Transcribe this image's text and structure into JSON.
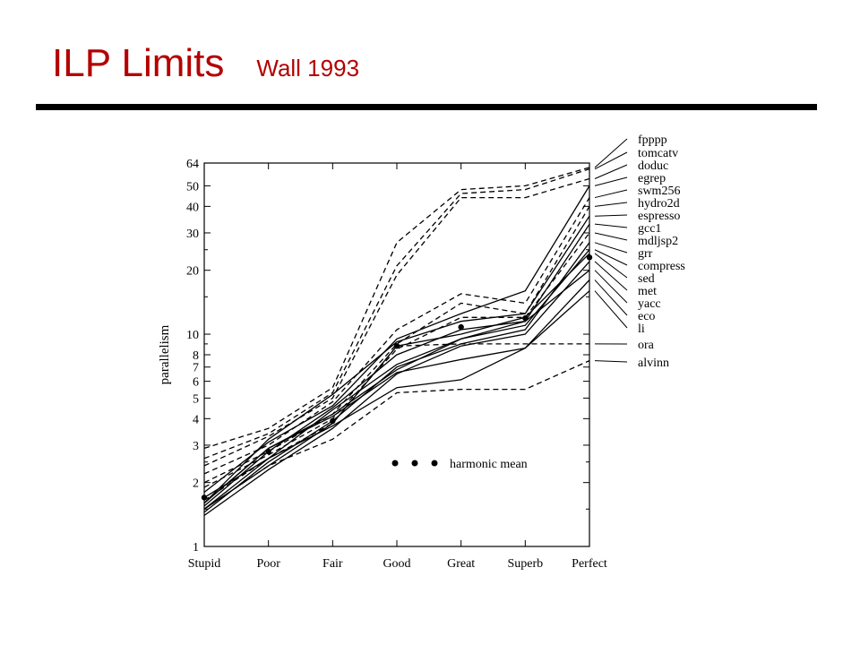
{
  "slide": {
    "title": "ILP Limits",
    "subtitle": "Wall 1993",
    "title_color": "#b40000",
    "rule_color": "#000000"
  },
  "chart_data": {
    "type": "line",
    "ylabel": "parallelism",
    "yscale": "log2",
    "ylim": [
      1,
      64
    ],
    "ytick_labels": [
      "1",
      "2",
      "3",
      "4",
      "5",
      "6",
      "7",
      "8",
      "10",
      "20",
      "30",
      "40",
      "50",
      "64"
    ],
    "categories": [
      "Stupid",
      "Poor",
      "Fair",
      "Good",
      "Great",
      "Superb",
      "Perfect"
    ],
    "grid": false,
    "legend": {
      "label": "harmonic mean",
      "placement": "center-right"
    },
    "series": [
      {
        "name": "fpppp",
        "style": "dashed",
        "values": [
          2.9,
          3.6,
          5.6,
          27,
          48,
          50,
          61
        ]
      },
      {
        "name": "tomcatv",
        "style": "dashed",
        "values": [
          2.6,
          3.4,
          5.3,
          21,
          46,
          48,
          60
        ]
      },
      {
        "name": "doduc",
        "style": "dashed",
        "values": [
          2.4,
          3.3,
          5.0,
          19,
          44,
          44,
          54
        ]
      },
      {
        "name": "egrep",
        "style": "solid",
        "values": [
          1.8,
          3.1,
          4.6,
          9.5,
          12.5,
          16,
          50
        ]
      },
      {
        "name": "swm256",
        "style": "dashed",
        "values": [
          2.2,
          3.0,
          4.8,
          10.5,
          15.5,
          14,
          44
        ]
      },
      {
        "name": "hydro2d",
        "style": "dashed",
        "values": [
          2.0,
          2.8,
          4.2,
          9.0,
          14,
          12.5,
          40
        ]
      },
      {
        "name": "espresso",
        "style": "solid",
        "values": [
          1.6,
          3.2,
          5.2,
          9.2,
          11.5,
          12.5,
          36
        ]
      },
      {
        "name": "gcc1",
        "style": "solid",
        "values": [
          1.5,
          2.6,
          4.4,
          7.2,
          9.5,
          11.5,
          33
        ]
      },
      {
        "name": "mdljsp2",
        "style": "dashed",
        "values": [
          1.9,
          2.7,
          4.0,
          8.5,
          12,
          12,
          30
        ]
      },
      {
        "name": "grr",
        "style": "solid",
        "values": [
          1.45,
          2.5,
          3.9,
          7.0,
          9.0,
          10.5,
          27
        ]
      },
      {
        "name": "compress",
        "style": "solid",
        "values": [
          1.6,
          2.9,
          4.2,
          6.8,
          9.5,
          11,
          25
        ]
      },
      {
        "name": "sed",
        "style": "solid",
        "values": [
          1.5,
          2.4,
          3.8,
          8.8,
          10,
          12,
          24
        ]
      },
      {
        "name": "met",
        "style": "solid",
        "values": [
          1.4,
          2.3,
          3.6,
          6.5,
          8.8,
          10,
          22
        ]
      },
      {
        "name": "yacc",
        "style": "solid",
        "values": [
          1.55,
          2.8,
          4.5,
          8.0,
          10.5,
          11.5,
          20
        ]
      },
      {
        "name": "eco",
        "style": "solid",
        "values": [
          1.6,
          2.9,
          4.1,
          6.6,
          7.6,
          8.6,
          18
        ]
      },
      {
        "name": "li",
        "style": "solid",
        "values": [
          1.7,
          2.6,
          3.7,
          5.6,
          6.1,
          8.6,
          16
        ]
      },
      {
        "name": "ora",
        "style": "dashed",
        "values": [
          1.65,
          2.6,
          3.8,
          8.8,
          9.0,
          9.0,
          9.0
        ]
      },
      {
        "name": "alvinn",
        "style": "dashed",
        "values": [
          1.5,
          2.4,
          3.2,
          5.3,
          5.5,
          5.5,
          7.5
        ]
      },
      {
        "name": "harmonic mean",
        "style": "dotted",
        "values": [
          1.7,
          2.8,
          3.9,
          8.8,
          10.8,
          11.9,
          23
        ]
      }
    ]
  }
}
